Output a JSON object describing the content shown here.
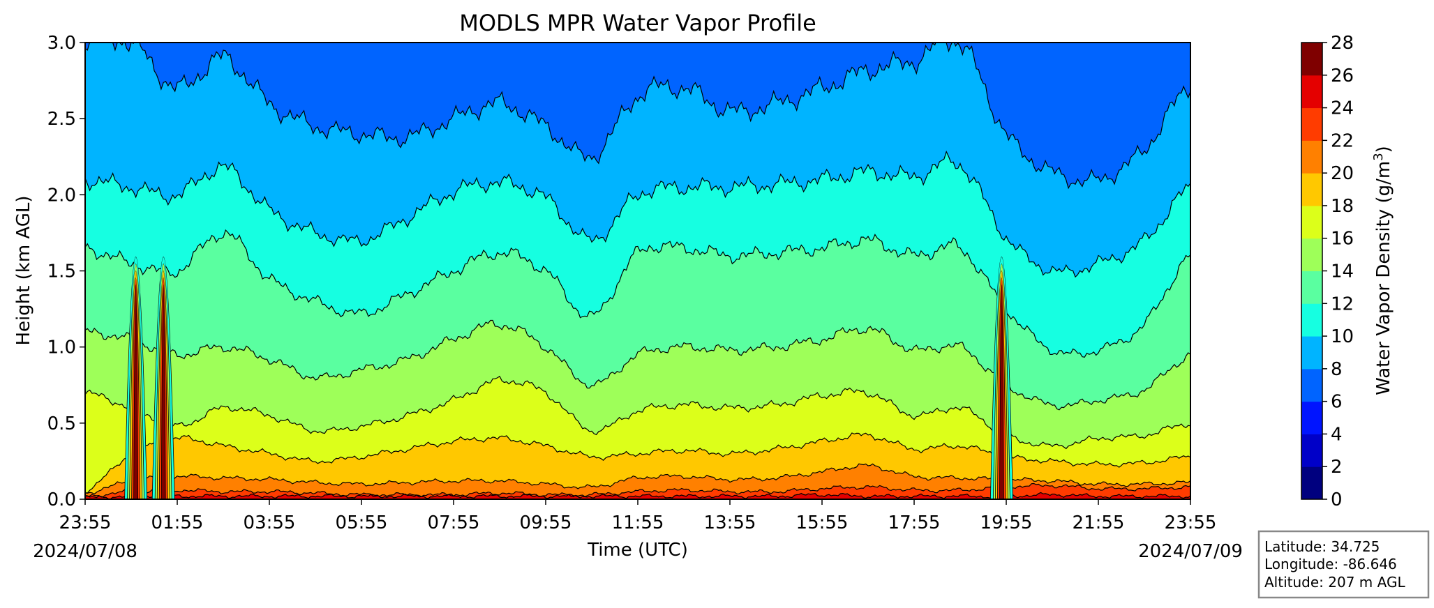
{
  "chart_data": {
    "type": "contourf",
    "title": "MODLS MPR Water Vapor Profile",
    "xlabel": "Time (UTC)",
    "ylabel": "Height (km AGL)",
    "colorbar_label": "Water Vapor Density (g/m³)",
    "colorbar_label_base": "Water Vapor Density (g/m",
    "colorbar_label_sup": "3",
    "colorbar_label_end": ")",
    "x_tick_labels": [
      "23:55",
      "01:55",
      "03:55",
      "05:55",
      "07:55",
      "09:55",
      "11:55",
      "13:55",
      "15:55",
      "17:55",
      "19:55",
      "21:55",
      "23:55"
    ],
    "x_range_hours": [
      0,
      24
    ],
    "date_start": "2024/07/08",
    "date_end": "2024/07/09",
    "y_ticks": [
      "0.0",
      "0.5",
      "1.0",
      "1.5",
      "2.0",
      "2.5",
      "3.0"
    ],
    "ylim": [
      0,
      3.0
    ],
    "levels": [
      0,
      2,
      4,
      6,
      8,
      10,
      12,
      14,
      16,
      18,
      20,
      22,
      24,
      26,
      28
    ],
    "level_labels": [
      "0",
      "2",
      "4",
      "6",
      "8",
      "10",
      "12",
      "14",
      "16",
      "18",
      "20",
      "22",
      "24",
      "26",
      "28"
    ],
    "level_colors": [
      "#00007f",
      "#0000c8",
      "#0014ff",
      "#0064ff",
      "#00b4ff",
      "#16ffe1",
      "#5affa0",
      "#9eff59",
      "#dcff1a",
      "#ffc800",
      "#ff8000",
      "#ff3c00",
      "#e40000",
      "#7f0000"
    ],
    "contour_heights_km": {
      "hours": [
        0,
        1,
        2,
        3,
        4,
        5,
        6,
        7,
        8,
        9,
        10,
        11,
        12,
        13,
        14,
        15,
        16,
        17,
        18,
        19,
        20,
        21,
        22,
        23,
        24
      ],
      "c24": [
        0.01,
        0.02,
        0.02,
        0.02,
        0.02,
        0.02,
        0.02,
        0.02,
        0.02,
        0.02,
        0.02,
        0.02,
        0.02,
        0.02,
        0.02,
        0.02,
        0.03,
        0.02,
        0.02,
        0.02,
        0.02,
        0.03,
        0.02,
        0.02,
        0.02
      ],
      "c22": [
        0.02,
        0.05,
        0.06,
        0.05,
        0.05,
        0.04,
        0.03,
        0.03,
        0.03,
        0.04,
        0.03,
        0.03,
        0.05,
        0.06,
        0.05,
        0.05,
        0.07,
        0.08,
        0.06,
        0.06,
        0.08,
        0.09,
        0.07,
        0.07,
        0.08
      ],
      "c20": [
        0.04,
        0.12,
        0.15,
        0.14,
        0.13,
        0.11,
        0.1,
        0.11,
        0.12,
        0.12,
        0.1,
        0.08,
        0.14,
        0.15,
        0.13,
        0.14,
        0.18,
        0.22,
        0.15,
        0.14,
        0.13,
        0.12,
        0.1,
        0.1,
        0.11
      ],
      "c18": [
        0.05,
        0.3,
        0.4,
        0.35,
        0.3,
        0.25,
        0.28,
        0.33,
        0.38,
        0.4,
        0.35,
        0.28,
        0.3,
        0.32,
        0.3,
        0.33,
        0.38,
        0.42,
        0.33,
        0.35,
        0.28,
        0.25,
        0.23,
        0.24,
        0.28
      ],
      "c16": [
        0.7,
        0.6,
        0.48,
        0.6,
        0.55,
        0.45,
        0.48,
        0.55,
        0.65,
        0.78,
        0.7,
        0.45,
        0.58,
        0.62,
        0.6,
        0.62,
        0.68,
        0.7,
        0.55,
        0.6,
        0.42,
        0.35,
        0.4,
        0.42,
        0.5
      ],
      "c14": [
        1.1,
        1.05,
        0.95,
        1.0,
        0.92,
        0.8,
        0.85,
        0.92,
        1.05,
        1.15,
        1.0,
        0.75,
        0.95,
        1.0,
        0.98,
        1.0,
        1.05,
        1.12,
        0.98,
        1.0,
        0.75,
        0.62,
        0.65,
        0.72,
        0.95
      ],
      "c12": [
        1.65,
        1.55,
        1.5,
        1.75,
        1.45,
        1.3,
        1.22,
        1.35,
        1.5,
        1.62,
        1.5,
        1.2,
        1.62,
        1.65,
        1.6,
        1.62,
        1.65,
        1.7,
        1.6,
        1.65,
        1.25,
        0.98,
        0.98,
        1.15,
        1.6
      ],
      "c10": [
        2.1,
        2.05,
        2.0,
        2.18,
        1.9,
        1.75,
        1.7,
        1.85,
        2.02,
        2.08,
        1.98,
        1.7,
        2.0,
        2.05,
        2.05,
        2.07,
        2.1,
        2.15,
        2.12,
        2.2,
        1.72,
        1.5,
        1.55,
        1.7,
        2.05
      ],
      "c8": [
        3.0,
        3.0,
        2.7,
        2.9,
        2.6,
        2.45,
        2.4,
        2.38,
        2.5,
        2.6,
        2.45,
        2.25,
        2.65,
        2.7,
        2.55,
        2.6,
        2.7,
        2.82,
        2.88,
        3.0,
        2.4,
        2.15,
        2.1,
        2.3,
        2.72
      ]
    },
    "moist_spikes_hours": [
      1.1,
      1.7,
      19.9
    ],
    "info_box": {
      "latitude": "Latitude: 34.725",
      "longitude": "Longitude: -86.646",
      "altitude": "Altitude: 207 m AGL"
    }
  }
}
